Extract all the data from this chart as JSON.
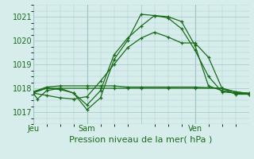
{
  "title": "Pression niveau de la mer( hPa )",
  "ylabel_ticks": [
    1017,
    1018,
    1019,
    1020,
    1021
  ],
  "ylim": [
    1016.5,
    1021.5
  ],
  "xlim": [
    0,
    48
  ],
  "xtick_positions": [
    0,
    12,
    36
  ],
  "xtick_labels": [
    "Jeu",
    "Sam",
    "Ven"
  ],
  "vlines": [
    0,
    12,
    36
  ],
  "background_color": "#d6edec",
  "grid_color": "#aacccc",
  "line_color": "#1a6b1a",
  "series": [
    {
      "x": [
        0,
        1,
        3,
        6,
        9,
        12,
        15,
        18,
        21,
        24,
        27,
        30,
        33,
        36,
        39,
        42,
        45,
        48
      ],
      "y": [
        1017.8,
        1017.55,
        1017.9,
        1018.0,
        1017.8,
        1017.1,
        1017.6,
        1019.2,
        1020.0,
        1021.1,
        1021.05,
        1021.0,
        1020.8,
        1019.8,
        1018.1,
        1017.9,
        1017.8,
        1017.8
      ]
    },
    {
      "x": [
        0,
        3,
        6,
        9,
        12,
        15,
        18,
        21,
        24,
        27,
        30,
        33,
        36,
        39,
        42,
        45,
        48
      ],
      "y": [
        1017.8,
        1018.0,
        1017.95,
        1017.8,
        1017.3,
        1017.9,
        1019.4,
        1020.1,
        1020.6,
        1021.05,
        1020.95,
        1020.5,
        1019.6,
        1018.5,
        1017.85,
        1017.8,
        1017.75
      ]
    },
    {
      "x": [
        0,
        3,
        6,
        12,
        15,
        18,
        21,
        24,
        30,
        36,
        42,
        45,
        48
      ],
      "y": [
        1017.85,
        1018.0,
        1018.0,
        1018.0,
        1018.0,
        1018.0,
        1018.0,
        1018.0,
        1018.0,
        1018.0,
        1018.0,
        1017.85,
        1017.78
      ]
    },
    {
      "x": [
        0,
        3,
        6,
        12,
        15,
        18,
        21,
        24,
        30,
        36,
        42,
        45,
        48
      ],
      "y": [
        1017.85,
        1018.05,
        1018.1,
        1018.1,
        1018.1,
        1018.1,
        1018.05,
        1018.05,
        1018.05,
        1018.05,
        1018.0,
        1017.85,
        1017.78
      ]
    },
    {
      "x": [
        0,
        3,
        6,
        9,
        12,
        15,
        18,
        21,
        24,
        27,
        30,
        33,
        36,
        39,
        42,
        45,
        48
      ],
      "y": [
        1017.8,
        1017.7,
        1017.6,
        1017.55,
        1017.65,
        1018.3,
        1019.0,
        1019.7,
        1020.1,
        1020.35,
        1020.15,
        1019.9,
        1019.9,
        1019.3,
        1018.0,
        1017.75,
        1017.75
      ]
    }
  ]
}
